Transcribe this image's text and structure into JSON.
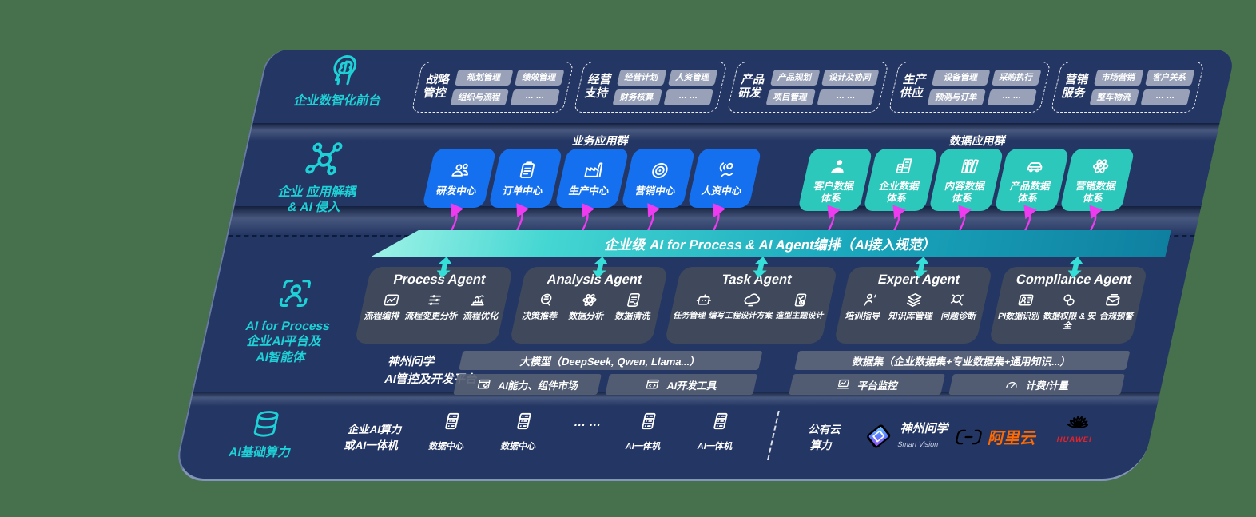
{
  "colors": {
    "accent_teal": "#1ed1d6",
    "box_blue": "#1470ee",
    "box_teal": "#2cc8bb",
    "bus_teal": "#2fd0cd",
    "arrow_magenta": "#ee3bf0",
    "aliyun_orange": "#ff6a00",
    "huawei_red": "#e2232b",
    "panel_navy": "#243663",
    "backdrop_green": "#47704d"
  },
  "front_layer": {
    "label": "企业数智化前台",
    "groups": [
      {
        "line1": "战略",
        "line2": "管控",
        "chips": [
          "规划管理",
          "绩效管理",
          "组织与流程",
          "… …"
        ]
      },
      {
        "line1": "经营",
        "line2": "支持",
        "chips": [
          "经营计划",
          "人资管理",
          "财务核算",
          "… …"
        ]
      },
      {
        "line1": "产品",
        "line2": "研发",
        "chips": [
          "产品规划",
          "设计及协同",
          "项目管理",
          "… …"
        ]
      },
      {
        "line1": "生产",
        "line2": "供应",
        "chips": [
          "设备管理",
          "采购执行",
          "预测与订单",
          "… …"
        ]
      },
      {
        "line1": "营销",
        "line2": "服务",
        "chips": [
          "市场营销",
          "客户关系",
          "整车物流",
          "… …"
        ]
      }
    ]
  },
  "app_layer": {
    "label_line1": "企业 应用解耦",
    "label_line2": "& AI 侵入",
    "business_title": "业务应用群",
    "business_items": [
      "研发中心",
      "订单中心",
      "生产中心",
      "营销中心",
      "人资中心"
    ],
    "data_title": "数据应用群",
    "data_items": [
      {
        "line1": "客户数据",
        "line2": "体系"
      },
      {
        "line1": "企业数据",
        "line2": "体系"
      },
      {
        "line1": "内容数据",
        "line2": "体系"
      },
      {
        "line1": "产品数据",
        "line2": "体系"
      },
      {
        "line1": "营销数据",
        "line2": "体系"
      }
    ]
  },
  "ai_bus": {
    "label": "企业级 AI for Process & AI Agent编排（AI接入规范）"
  },
  "agent_layer": {
    "label_line1": "AI for Process",
    "label_line2": "企业AI平台及",
    "label_line3": "AI智能体",
    "agents": [
      {
        "title": "Process Agent",
        "items": [
          "流程编排",
          "流程变更分析",
          "流程优化"
        ]
      },
      {
        "title": "Analysis Agent",
        "items": [
          "决策推荐",
          "数据分析",
          "数据清洗"
        ]
      },
      {
        "title": "Task Agent",
        "items": [
          "任务管理",
          "编写工程设计方案",
          "造型主题设计"
        ]
      },
      {
        "title": "Expert Agent",
        "items": [
          "培训指导",
          "知识库管理",
          "问题诊断"
        ]
      },
      {
        "title": "Compliance Agent",
        "items": [
          "PI数据识别",
          "数据权限 & 安全",
          "合规预警"
        ]
      }
    ]
  },
  "platform_layer": {
    "label_line1": "神州问学",
    "label_line2": "AI管控及开发平台",
    "model_bar": "大模型（DeepSeek, Qwen, Llama...）",
    "model_chip1": "AI能力、组件市场",
    "model_chip2": "AI开发工具",
    "data_bar": "数据集（企业数据集+专业数据集+通用知识...）",
    "data_chip1": "平台监控",
    "data_chip2": "计费/计量"
  },
  "compute_layer": {
    "label": "AI基础算力",
    "enterprise_line1": "企业AI算力",
    "enterprise_line2": "或AI一体机",
    "nodes": [
      "数据中心",
      "数据中心",
      "AI一体机",
      "AI一体机"
    ],
    "dots": "… …",
    "public_line1": "公有云",
    "public_line2": "算力",
    "vendors": {
      "szwx_name": "神州问学",
      "szwx_sub": "Smart Vision",
      "aliyun": "阿里云",
      "huawei": "HUAWEI"
    }
  }
}
